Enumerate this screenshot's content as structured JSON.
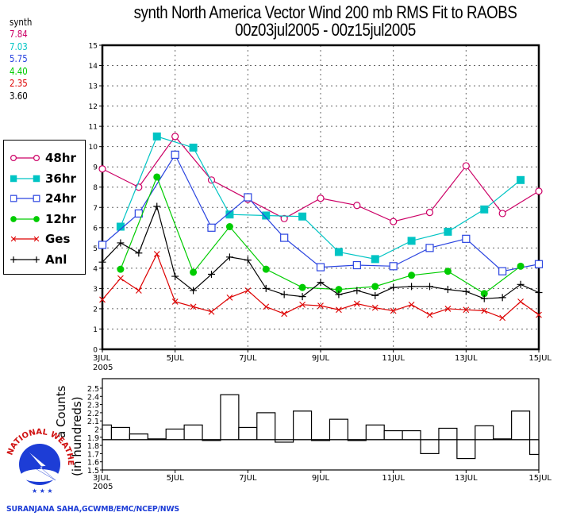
{
  "header": {
    "title_line1": "synth North America Vector Wind 200 mb RMS Fit to RAOBS",
    "title_line2": "00z03jul2005 - 00z15jul2005"
  },
  "stats": {
    "label": "synth",
    "values": [
      {
        "text": "7.84",
        "color": "#cc0066"
      },
      {
        "text": "7.03",
        "color": "#00c4c4"
      },
      {
        "text": "5.75",
        "color": "#2a44e0"
      },
      {
        "text": "4.40",
        "color": "#00cc00"
      },
      {
        "text": "2.35",
        "color": "#dd0000"
      },
      {
        "text": "3.60",
        "color": "#000000"
      }
    ]
  },
  "legend": [
    {
      "label": "48hr",
      "marker": "open-circle",
      "color": "#cc0066"
    },
    {
      "label": "36hr",
      "marker": "filled-square",
      "color": "#00c4c4"
    },
    {
      "label": "24hr",
      "marker": "open-square",
      "color": "#2a44e0"
    },
    {
      "label": "12hr",
      "marker": "filled-circle",
      "color": "#00cc00"
    },
    {
      "label": "Ges",
      "marker": "x",
      "color": "#dd0000"
    },
    {
      "label": "Anl",
      "marker": "plus",
      "color": "#000000"
    }
  ],
  "footer": {
    "credit": "SURANJANA SAHA,GCWMB/EMC/NCEP/NWS",
    "logo_text": "NATIONAL WEATHER SERVICE"
  },
  "chart_data": [
    {
      "type": "line",
      "title": "synth North America Vector Wind 200 mb RMS Fit to RAOBS",
      "subtitle": "00z03jul2005 - 00z15jul2005",
      "xlabel": "",
      "ylabel": "",
      "xlim": [
        3,
        15
      ],
      "ylim": [
        0,
        15
      ],
      "grid": true,
      "legend_position": "left",
      "x_tick_labels": [
        {
          "x": 3,
          "label": "3JUL"
        },
        {
          "x": 5,
          "label": "5JUL"
        },
        {
          "x": 7,
          "label": "7JUL"
        },
        {
          "x": 9,
          "label": "9JUL"
        },
        {
          "x": 11,
          "label": "11JUL"
        },
        {
          "x": 13,
          "label": "13JUL"
        },
        {
          "x": 15,
          "label": "15JUL"
        }
      ],
      "x_year_label": "2005",
      "y_ticks": [
        0,
        1,
        2,
        3,
        4,
        5,
        6,
        7,
        8,
        9,
        10,
        11,
        12,
        13,
        14,
        15
      ],
      "series": [
        {
          "name": "48hr",
          "color": "#cc0066",
          "marker": "open-circle",
          "x": [
            3,
            4,
            5,
            6,
            7,
            8,
            9,
            10,
            11,
            12,
            13,
            14,
            15
          ],
          "y": [
            8.9,
            8.0,
            10.5,
            8.35,
            7.4,
            6.45,
            7.45,
            7.1,
            6.3,
            6.75,
            9.05,
            6.7,
            7.8
          ]
        },
        {
          "name": "36hr",
          "color": "#00c4c4",
          "marker": "filled-square",
          "x": [
            3.5,
            4.5,
            5.5,
            6.5,
            7.5,
            8.5,
            9.5,
            10.5,
            11.5,
            12.5,
            13.5,
            14.5
          ],
          "y": [
            6.05,
            10.5,
            9.95,
            6.65,
            6.6,
            6.55,
            4.8,
            4.45,
            5.35,
            5.8,
            6.9,
            8.35
          ]
        },
        {
          "name": "24hr",
          "color": "#2a44e0",
          "marker": "open-square",
          "x": [
            3,
            4,
            5,
            6,
            7,
            8,
            9,
            10,
            11,
            12,
            13,
            14,
            15
          ],
          "y": [
            5.15,
            6.7,
            9.6,
            6.0,
            7.5,
            5.5,
            4.05,
            4.15,
            4.1,
            5.0,
            5.45,
            3.85,
            4.2
          ]
        },
        {
          "name": "12hr",
          "color": "#00cc00",
          "marker": "filled-circle",
          "x": [
            3.5,
            4.5,
            5.5,
            6.5,
            7.5,
            8.5,
            9.5,
            10.5,
            11.5,
            12.5,
            13.5,
            14.5
          ],
          "y": [
            3.95,
            8.5,
            3.8,
            6.05,
            3.95,
            3.05,
            2.95,
            3.1,
            3.65,
            3.85,
            2.75,
            4.1
          ]
        },
        {
          "name": "Ges",
          "color": "#dd0000",
          "marker": "x",
          "x": [
            3,
            3.5,
            4,
            4.5,
            5,
            5.5,
            6,
            6.5,
            7,
            7.5,
            8,
            8.5,
            9,
            9.5,
            10,
            10.5,
            11,
            11.5,
            12,
            12.5,
            13,
            13.5,
            14,
            14.5,
            15
          ],
          "y": [
            2.45,
            3.5,
            2.9,
            4.7,
            2.35,
            2.1,
            1.85,
            2.55,
            2.9,
            2.1,
            1.75,
            2.2,
            2.15,
            1.95,
            2.25,
            2.05,
            1.9,
            2.2,
            1.7,
            2.0,
            1.95,
            1.9,
            1.55,
            2.35,
            1.7
          ]
        },
        {
          "name": "Anl",
          "color": "#000000",
          "marker": "plus",
          "x": [
            3,
            3.5,
            4,
            4.5,
            5,
            5.5,
            6,
            6.5,
            7,
            7.5,
            8,
            8.5,
            9,
            9.5,
            10,
            10.5,
            11,
            11.5,
            12,
            12.5,
            13,
            13.5,
            14,
            14.5,
            15
          ],
          "y": [
            4.3,
            5.25,
            4.75,
            7.05,
            3.6,
            2.9,
            3.7,
            4.55,
            4.4,
            3.0,
            2.7,
            2.6,
            3.3,
            2.7,
            2.9,
            2.65,
            3.05,
            3.1,
            3.1,
            2.95,
            2.85,
            2.5,
            2.55,
            3.2,
            2.8
          ]
        }
      ]
    },
    {
      "type": "bar",
      "title": "",
      "xlabel": "",
      "ylabel": "a Counts",
      "ylabel2": "(in hundreds)",
      "xlim": [
        3,
        15
      ],
      "ylim": [
        1.5,
        2.5
      ],
      "baseline": 1.87,
      "grid": false,
      "y_ticks": [
        "1.5",
        "1.6",
        "1.7",
        "1.8",
        "1.9",
        "2",
        "2.1",
        "2.2",
        "2.3",
        "2.4",
        "2.5"
      ],
      "x_tick_labels": [
        {
          "x": 3,
          "label": "3JUL"
        },
        {
          "x": 5,
          "label": "5JUL"
        },
        {
          "x": 7,
          "label": "7JUL"
        },
        {
          "x": 9,
          "label": "9JUL"
        },
        {
          "x": 11,
          "label": "11JUL"
        },
        {
          "x": 13,
          "label": "13JUL"
        },
        {
          "x": 15,
          "label": "15JUL"
        }
      ],
      "x_year_label": "2005",
      "x": [
        3,
        3.5,
        4,
        4.5,
        5,
        5.5,
        6,
        6.5,
        7,
        7.5,
        8,
        8.5,
        9,
        9.5,
        10,
        10.5,
        11,
        11.5,
        12,
        12.5,
        13,
        13.5,
        14,
        14.5,
        15
      ],
      "values": [
        2.05,
        2.02,
        1.94,
        1.88,
        2.0,
        2.05,
        1.87,
        2.42,
        2.02,
        2.2,
        1.84,
        2.22,
        1.86,
        2.12,
        1.86,
        2.05,
        1.98,
        1.98,
        1.7,
        2.01,
        1.64,
        2.04,
        1.88,
        2.22,
        1.69
      ]
    }
  ]
}
